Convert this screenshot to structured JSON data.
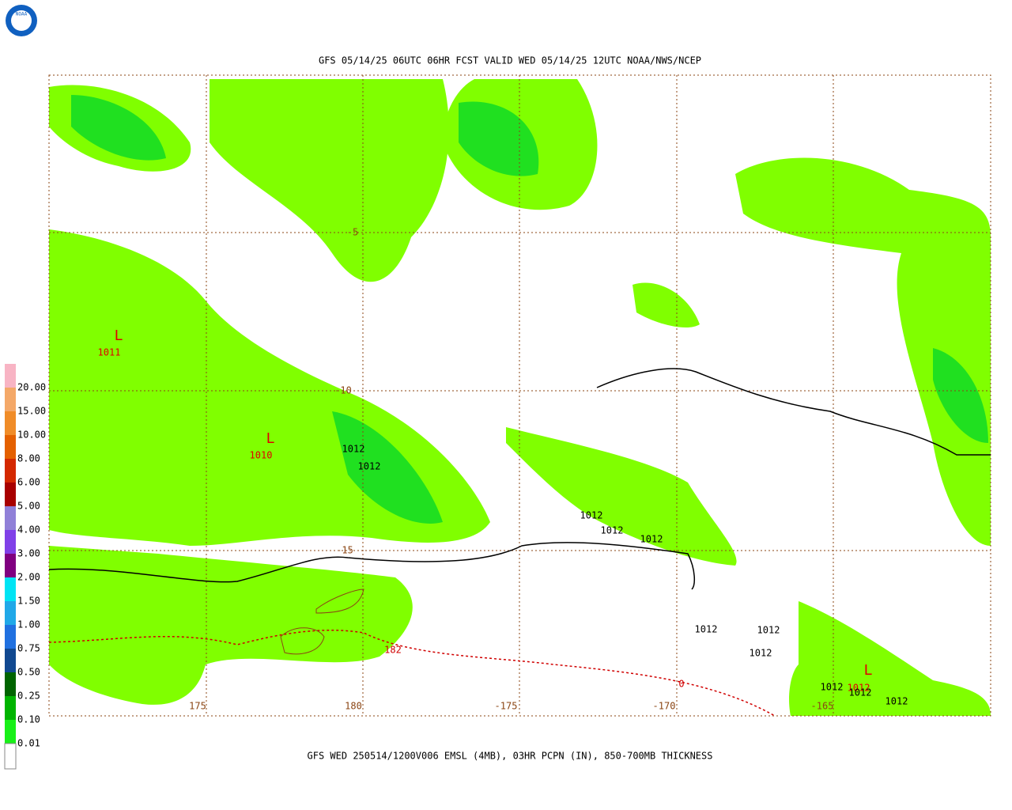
{
  "header": {
    "title": "GFS 05/14/25 06UTC 06HR FCST VALID WED 05/14/25 12UTC NOAA/NWS/NCEP",
    "logo": "NOAA"
  },
  "footer": {
    "caption": "GFS WED 250514/1200V006 EMSL (4MB), 03HR PCPN (IN), 850-700MB THICKNESS"
  },
  "legend": {
    "labels": [
      "20.00",
      "15.00",
      "10.00",
      "8.00",
      "6.00",
      "5.00",
      "4.00",
      "3.00",
      "2.00",
      "1.50",
      "1.00",
      "0.75",
      "0.50",
      "0.25",
      "0.10",
      "0.01"
    ],
    "colors": [
      "#f8b4c4",
      "#f4a868",
      "#f08c28",
      "#e46000",
      "#d42800",
      "#a80000",
      "#9080d8",
      "#8040e8",
      "#800080",
      "#00e4f4",
      "#20a8e8",
      "#2070e0",
      "#104890",
      "#006400",
      "#00b400",
      "#18f018",
      "#80ff00"
    ]
  },
  "map": {
    "lat_labels": [
      "-5",
      "-10",
      "-15"
    ],
    "lon_labels": [
      "175",
      "180",
      "-175",
      "-170",
      "-165"
    ],
    "lows": [
      {
        "symbol": "L",
        "value": "1011"
      },
      {
        "symbol": "L",
        "value": "1010"
      },
      {
        "symbol": "L",
        "value": "1012"
      }
    ],
    "isobar_labels": [
      "1012",
      "1012",
      "1012",
      "1012",
      "1012",
      "1012",
      "1012",
      "1012",
      "1012",
      "1012",
      "1012"
    ],
    "thickness_labels": [
      "182",
      "0"
    ]
  }
}
